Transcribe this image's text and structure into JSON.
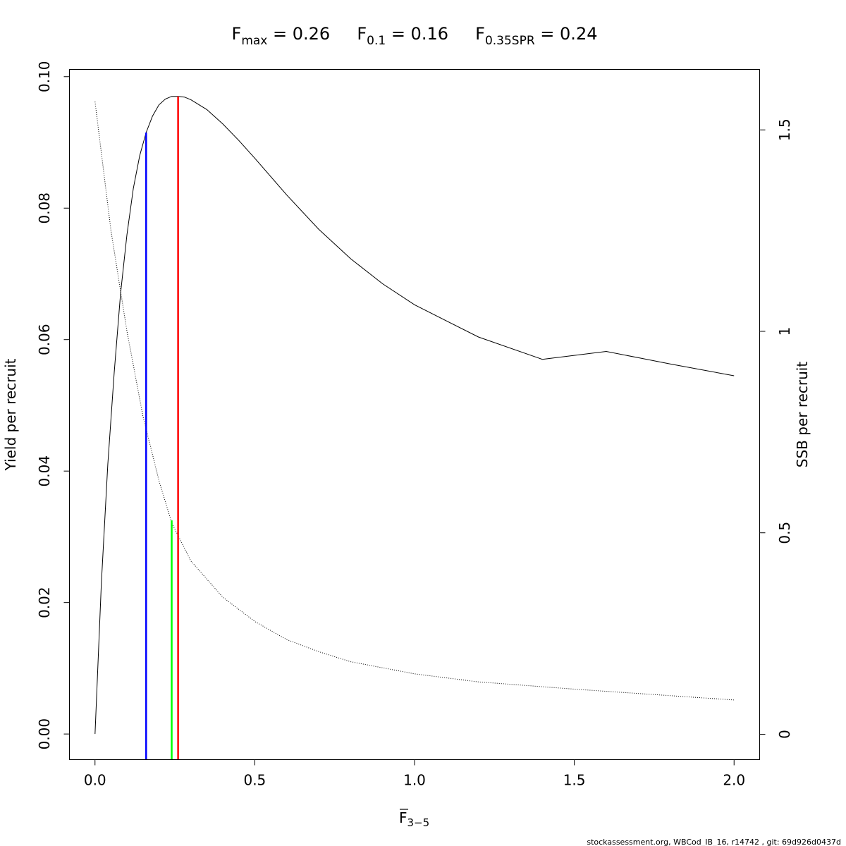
{
  "chart_data": {
    "type": "line",
    "title": {
      "parts": [
        {
          "base": "F",
          "sub": "max",
          "value": " = 0.26"
        },
        {
          "base": "F",
          "sub": "0.1",
          "value": " = 0.16"
        },
        {
          "base": "F",
          "sub": "0.35SPR",
          "value": " = 0.24"
        }
      ]
    },
    "xlabel": {
      "base": "F",
      "sub": "3−5",
      "overline": true
    },
    "ylabel_left": "Yield per recruit",
    "ylabel_right": "SSB per recruit",
    "xlim": [
      -0.08,
      2.08
    ],
    "ylim_left": [
      -0.0039,
      0.1011
    ],
    "ylim_right": [
      -0.063,
      1.65
    ],
    "x_ticks": [
      0.0,
      0.5,
      1.0,
      1.5,
      2.0
    ],
    "x_tick_labels": [
      "0.0",
      "0.5",
      "1.0",
      "1.5",
      "2.0"
    ],
    "y_left_ticks": [
      0.0,
      0.02,
      0.04,
      0.06,
      0.08,
      0.1
    ],
    "y_left_tick_labels": [
      "0.00",
      "0.02",
      "0.04",
      "0.06",
      "0.08",
      "0.10"
    ],
    "y_right_ticks": [
      0,
      0.5,
      1,
      1.5
    ],
    "y_right_tick_labels": [
      "0",
      "0.5",
      "1",
      "1.5"
    ],
    "series": [
      {
        "name": "",
        "axis": "left",
        "style": "solid",
        "x": [
          0.0,
          0.02,
          0.04,
          0.06,
          0.08,
          0.1,
          0.12,
          0.14,
          0.16,
          0.18,
          0.2,
          0.22,
          0.24,
          0.26,
          0.28,
          0.3,
          0.35,
          0.4,
          0.45,
          0.5,
          0.6,
          0.7,
          0.8,
          0.9,
          1.0,
          1.2,
          1.4,
          1.6,
          1.8,
          2.0
        ],
        "values": [
          0.0,
          0.023,
          0.041,
          0.055,
          0.067,
          0.076,
          0.083,
          0.088,
          0.0915,
          0.094,
          0.0957,
          0.0966,
          0.097,
          0.097,
          0.0969,
          0.0965,
          0.095,
          0.0928,
          0.0903,
          0.0876,
          0.082,
          0.0768,
          0.0723,
          0.0685,
          0.0653,
          0.0604,
          0.057,
          0.0582,
          0.0563,
          0.0545
        ]
      },
      {
        "name": "",
        "axis": "right",
        "style": "dotted",
        "x": [
          0.0,
          0.05,
          0.1,
          0.15,
          0.2,
          0.24,
          0.3,
          0.4,
          0.5,
          0.6,
          0.7,
          0.8,
          1.0,
          1.2,
          1.5,
          2.0
        ],
        "values": [
          1.57,
          1.25,
          1.0,
          0.79,
          0.63,
          0.525,
          0.43,
          0.34,
          0.28,
          0.235,
          0.205,
          0.18,
          0.15,
          0.13,
          0.112,
          0.085
        ]
      }
    ],
    "reference_lines": [
      {
        "label": "F_0.1",
        "x": 0.16,
        "y": 0.0915,
        "color": "#0000ff"
      },
      {
        "label": "F_0.35SPR",
        "x": 0.24,
        "y": 0.0325,
        "color": "#00ff00"
      },
      {
        "label": "F_max",
        "x": 0.26,
        "y": 0.097,
        "color": "#ff0000"
      }
    ],
    "grid": false,
    "legend": "none"
  },
  "footer": "stockassessment.org, WBCod_IB_16, r14742 , git: 69d926d0437d"
}
